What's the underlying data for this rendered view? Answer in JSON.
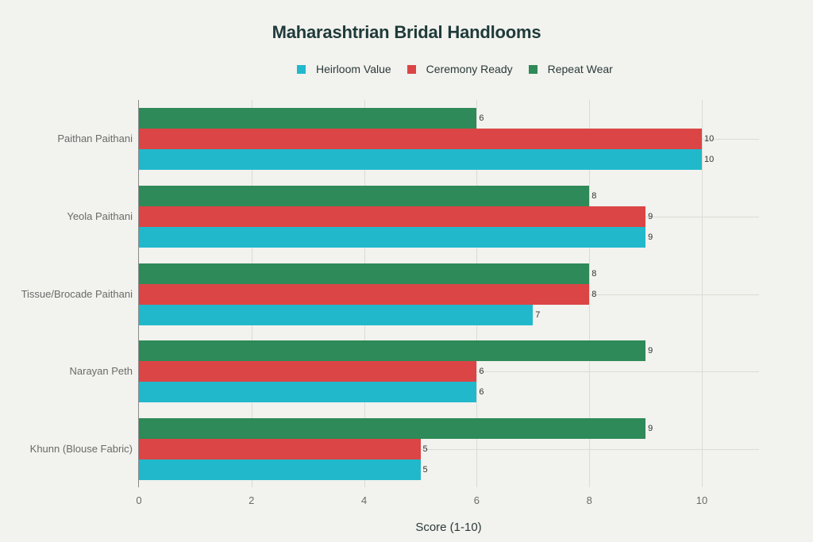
{
  "title": "Maharashtrian Bridal Handlooms",
  "legend": [
    {
      "label": "Heirloom Value",
      "color": "#21b8cc"
    },
    {
      "label": "Ceremony Ready",
      "color": "#db4545"
    },
    {
      "label": "Repeat Wear",
      "color": "#2e8a58"
    }
  ],
  "xaxis": {
    "label": "Score (1-10)",
    "ticks": [
      "0",
      "2",
      "4",
      "6",
      "8",
      "10"
    ]
  },
  "chart_data": {
    "type": "bar",
    "orientation": "horizontal",
    "title": "Maharashtrian Bridal Handlooms",
    "xlabel": "Score (1-10)",
    "ylabel": "",
    "xlim": [
      0,
      11
    ],
    "grid": true,
    "legend_position": "top",
    "categories": [
      "Paithan Paithani",
      "Yeola Paithani",
      "Tissue/Brocade Paithani",
      "Narayan Peth",
      "Khunn (Blouse Fabric)"
    ],
    "series": [
      {
        "name": "Heirloom Value",
        "color": "#21b8cc",
        "values": [
          10,
          9,
          7,
          6,
          5
        ]
      },
      {
        "name": "Ceremony Ready",
        "color": "#db4545",
        "values": [
          10,
          9,
          8,
          6,
          5
        ]
      },
      {
        "name": "Repeat Wear",
        "color": "#2e8a58",
        "values": [
          6,
          8,
          8,
          9,
          9
        ]
      }
    ]
  }
}
